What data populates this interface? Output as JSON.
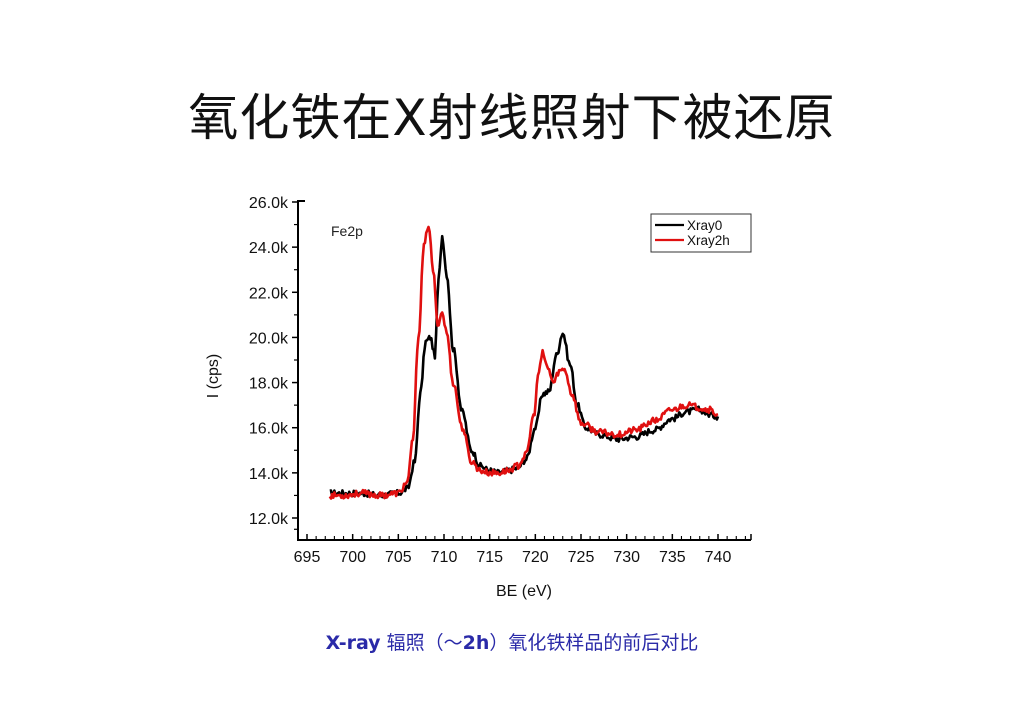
{
  "slide": {
    "title": "氧化铁在X射线照射下被还原",
    "caption_prefix": "X-ray",
    "caption_middle": " 辐照（～",
    "caption_bold": "2h",
    "caption_suffix": "）氧化铁样品的前后对比"
  },
  "colors": {
    "xray0": "#000000",
    "xray2h": "#e01010",
    "caption": "#2a2aa8",
    "axis": "#000000"
  },
  "chart_data": {
    "type": "line",
    "title": "",
    "annotation": "Fe2p",
    "xlabel": "BE (eV)",
    "ylabel": "I (cps)",
    "xlim": [
      693.9,
      745.5
    ],
    "ylim": [
      11.0,
      26.0
    ],
    "x_ticks": [
      695,
      700,
      705,
      710,
      715,
      720,
      725,
      730,
      735,
      740
    ],
    "y_ticks": [
      12.0,
      14.0,
      16.0,
      18.0,
      20.0,
      22.0,
      24.0,
      26.0
    ],
    "y_tick_labels": [
      "12.0k",
      "14.0k",
      "16.0k",
      "18.0k",
      "20.0k",
      "22.0k",
      "24.0k",
      "26.0k"
    ],
    "y_unit": "k cps",
    "grid": false,
    "legend_position": "upper right",
    "series": [
      {
        "name": "Xray0",
        "color": "#000000",
        "x": [
          697.5,
          699,
          701,
          703,
          705,
          706,
          706.8,
          707.4,
          708.0,
          708.5,
          709.0,
          709.4,
          709.8,
          710.3,
          711.0,
          712.0,
          713.0,
          714.0,
          715.0,
          716.0,
          717.0,
          718.0,
          719.0,
          720.0,
          720.8,
          721.5,
          722.3,
          723.0,
          723.8,
          724.6,
          725.5,
          727.0,
          729.0,
          731.0,
          733.0,
          735.0,
          736.5,
          738.0,
          739.0,
          740.0
        ],
        "y": [
          13.1,
          13.1,
          13.1,
          13.0,
          13.1,
          13.3,
          14.5,
          17.5,
          19.8,
          20.0,
          19.2,
          22.5,
          24.5,
          22.8,
          19.5,
          16.7,
          15.0,
          14.3,
          14.1,
          14.0,
          14.1,
          14.2,
          14.6,
          16.0,
          17.5,
          17.6,
          19.2,
          20.2,
          18.8,
          17.0,
          16.0,
          15.7,
          15.5,
          15.6,
          15.9,
          16.4,
          16.7,
          16.8,
          16.6,
          16.5
        ]
      },
      {
        "name": "Xray2h",
        "color": "#e01010",
        "x": [
          697.5,
          699,
          701,
          703,
          705,
          706,
          706.6,
          707.2,
          707.8,
          708.3,
          708.8,
          709.3,
          709.8,
          710.3,
          711.0,
          712.0,
          713.0,
          714.0,
          715.0,
          716.0,
          717.0,
          718.0,
          719.0,
          719.8,
          720.4,
          720.8,
          721.4,
          722.0,
          722.6,
          723.2,
          724.0,
          725.0,
          727.0,
          729.0,
          731.0,
          733.0,
          735.0,
          736.5,
          738.0,
          739.0,
          740.0
        ],
        "y": [
          13.0,
          13.0,
          13.1,
          13.0,
          13.1,
          13.6,
          15.5,
          20.0,
          24.0,
          25.0,
          23.0,
          20.6,
          21.1,
          20.2,
          18.0,
          16.0,
          14.5,
          14.1,
          14.0,
          14.0,
          14.1,
          14.3,
          14.8,
          16.5,
          18.5,
          19.3,
          18.6,
          18.0,
          18.5,
          18.6,
          17.5,
          16.2,
          15.8,
          15.7,
          15.9,
          16.3,
          16.8,
          17.0,
          16.9,
          16.8,
          16.6
        ]
      }
    ]
  }
}
